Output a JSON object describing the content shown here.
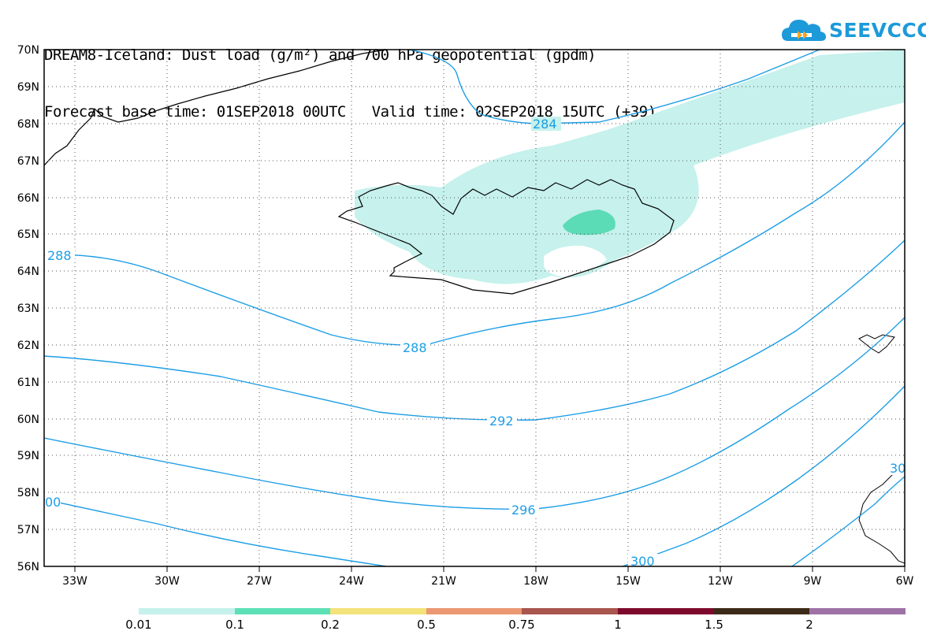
{
  "header": {
    "title_line1": "DREAM8-Iceland: Dust load (g/m²) and 700 hPa geopotential (gpdm)",
    "title_line2": "Forecast base time: 01SEP2018 00UTC   Valid time: 02SEP2018 15UTC (+39)"
  },
  "logo": {
    "text": "SEEVCCC",
    "icon": "cloud-logo-icon",
    "color": "#1d9ad9"
  },
  "map": {
    "lat_labels": [
      "70N",
      "69N",
      "68N",
      "67N",
      "66N",
      "65N",
      "64N",
      "63N",
      "62N",
      "61N",
      "60N",
      "59N",
      "58N",
      "57N",
      "56N"
    ],
    "lon_labels": [
      "33W",
      "30W",
      "27W",
      "24W",
      "21W",
      "18W",
      "15W",
      "12W",
      "9W",
      "6W"
    ],
    "contour_labels": [
      "284",
      "288",
      "288",
      "292",
      "296",
      "300",
      "00",
      "30"
    ],
    "colors": {
      "contour": "#1c9ee6",
      "dust_light": "#c6f1ec",
      "dust_mid": "#5bdcb6",
      "coast": "#000000"
    }
  },
  "legend": {
    "labels": [
      "0.01",
      "0.1",
      "0.2",
      "0.5",
      "0.75",
      "1",
      "1.5",
      "2"
    ],
    "colors": [
      "#c6f1ec",
      "#5ee0b6",
      "#f4e27a",
      "#eb9872",
      "#a8564e",
      "#7d0a2c",
      "#3c2a18",
      "#9e72a6"
    ]
  }
}
